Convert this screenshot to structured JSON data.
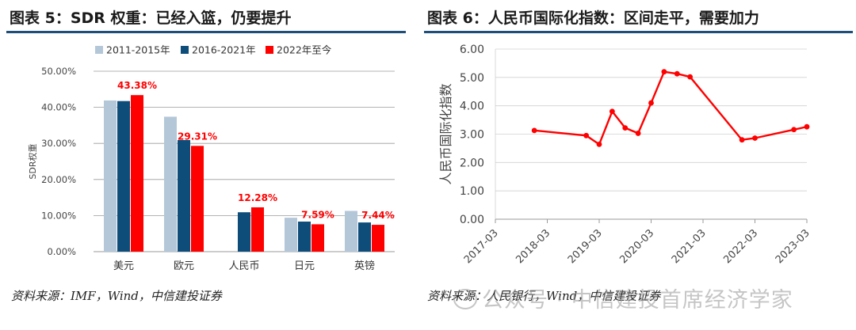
{
  "left": {
    "title": "图表 5：SDR 权重：已经入篮，仍要提升",
    "source": "资料来源：IMF，Wind，中信建投证券"
  },
  "right": {
    "title": "图表 6：人民币国际化指数：区间走平，需要加力",
    "source": "资料来源：人民银行，Wind，中信建投证券"
  },
  "watermark": "公众号 · 中信建投首席经济学家",
  "chart_data": [
    {
      "type": "bar",
      "categories": [
        "美元",
        "欧元",
        "人民币",
        "日元",
        "英镑"
      ],
      "series": [
        {
          "name": "2011-2015年",
          "color": "#b4c7d8",
          "values": [
            41.9,
            37.4,
            null,
            9.4,
            11.3
          ]
        },
        {
          "name": "2016-2021年",
          "color": "#0e4d7a",
          "values": [
            41.73,
            30.93,
            10.92,
            8.33,
            8.09
          ]
        },
        {
          "name": "2022年至今",
          "color": "#ff0000",
          "values": [
            43.38,
            29.31,
            12.28,
            7.59,
            7.44
          ]
        }
      ],
      "data_labels": [
        "43.38%",
        "29.31%",
        "12.28%",
        "7.59%",
        "7.44%"
      ],
      "ylabel": "SDR权重",
      "ylim": [
        0,
        50
      ],
      "yticks": [
        "0.00%",
        "10.00%",
        "20.00%",
        "30.00%",
        "40.00%",
        "50.00%"
      ],
      "legend": "top",
      "grid": true
    },
    {
      "type": "line",
      "color": "#ff0000",
      "xticks": [
        "2017-03",
        "2018-03",
        "2019-03",
        "2020-03",
        "2021-03",
        "2022-03",
        "2023-03"
      ],
      "x": [
        "2017-12",
        "2018-12",
        "2019-03",
        "2019-06",
        "2019-09",
        "2019-12",
        "2020-03",
        "2020-06",
        "2020-09",
        "2020-12",
        "2021-12",
        "2022-03",
        "2022-12",
        "2023-03"
      ],
      "y": [
        3.13,
        2.95,
        2.64,
        3.8,
        3.22,
        3.03,
        4.1,
        5.2,
        5.13,
        5.02,
        2.8,
        2.86,
        3.16,
        3.26
      ],
      "ylabel": "人民币国际化指数",
      "ylim": [
        0,
        6
      ],
      "yticks": [
        "0.00",
        "1.00",
        "2.00",
        "3.00",
        "4.00",
        "5.00",
        "6.00"
      ],
      "grid": true
    }
  ]
}
